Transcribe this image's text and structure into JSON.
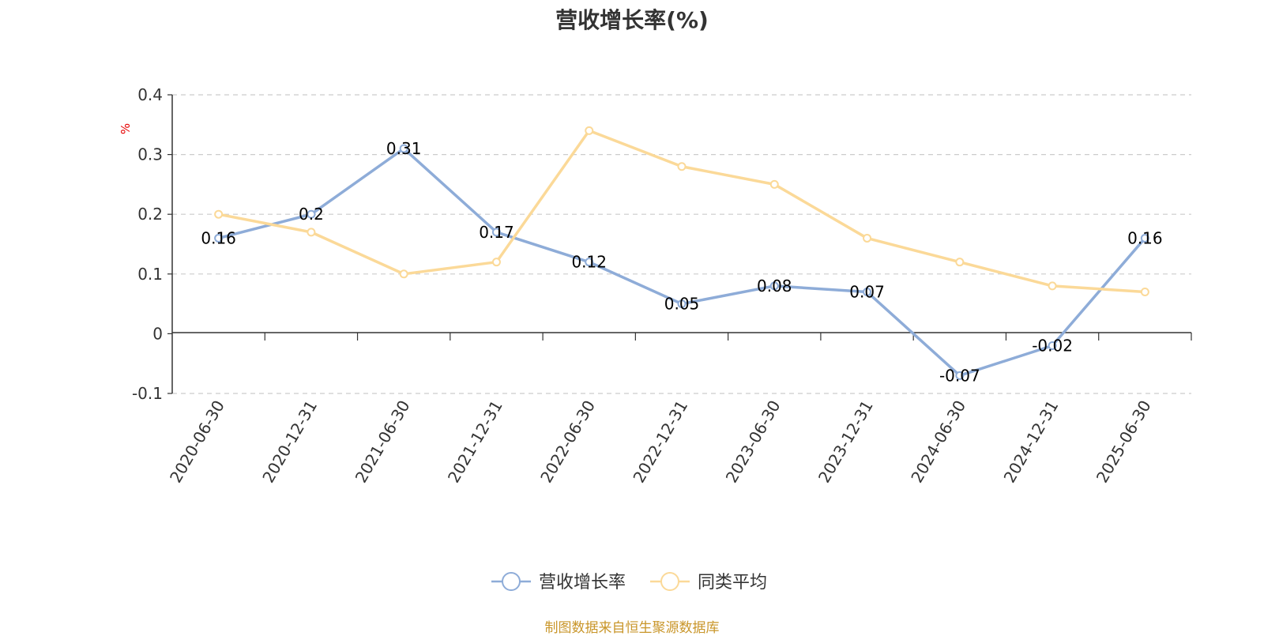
{
  "title": "营收增长率(%)",
  "source": "制图数据来自恒生聚源数据库",
  "chart_data": {
    "type": "line",
    "title": "营收增长率(%)",
    "ylabel": "%",
    "xlabel": "",
    "ylim": [
      -0.1,
      0.4
    ],
    "yticks": [
      -0.1,
      0,
      0.1,
      0.2,
      0.3,
      0.4
    ],
    "ytick_labels": [
      "-0.1",
      "0",
      "0.1",
      "0.2",
      "0.3",
      "0.4"
    ],
    "grid": true,
    "legend_position": "bottom-center",
    "categories": [
      "2020-06-30",
      "2020-12-31",
      "2021-06-30",
      "2021-12-31",
      "2022-06-30",
      "2022-12-31",
      "2023-06-30",
      "2023-12-31",
      "2024-06-30",
      "2024-12-31",
      "2025-06-30"
    ],
    "series": [
      {
        "name": "营收增长率",
        "color": "#8eacd8",
        "show_labels": true,
        "values": [
          0.16,
          0.2,
          0.31,
          0.17,
          0.12,
          0.05,
          0.08,
          0.07,
          -0.07,
          -0.02,
          0.16
        ],
        "labels": [
          "0.16",
          "0.2",
          "0.31",
          "0.17",
          "0.12",
          "0.05",
          "0.08",
          "0.07",
          "-0.07",
          "-0.02",
          "0.16"
        ]
      },
      {
        "name": "同类平均",
        "color": "#fbd998",
        "show_labels": false,
        "values": [
          0.2,
          0.17,
          0.1,
          0.12,
          0.34,
          0.28,
          0.25,
          0.16,
          0.12,
          0.08,
          0.07
        ]
      }
    ]
  }
}
